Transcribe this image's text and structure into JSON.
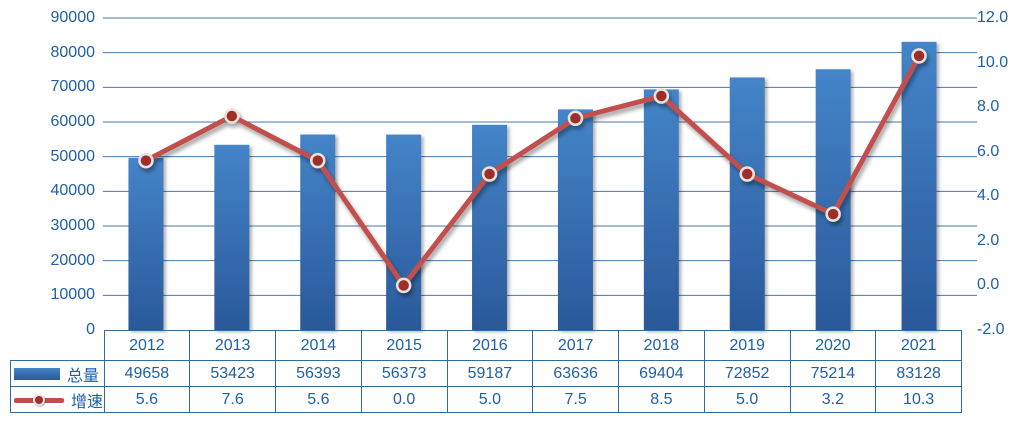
{
  "chart_data": {
    "type": "bar",
    "subtype": "combo-bar-line",
    "categories": [
      "2012",
      "2013",
      "2014",
      "2015",
      "2016",
      "2017",
      "2018",
      "2019",
      "2020",
      "2021"
    ],
    "series": [
      {
        "name": "总量",
        "type": "bar",
        "axis": "left",
        "values": [
          49658,
          53423,
          56393,
          56373,
          59187,
          63636,
          69404,
          72852,
          75214,
          83128
        ]
      },
      {
        "name": "增速",
        "type": "line",
        "axis": "right",
        "values": [
          5.6,
          7.6,
          5.6,
          0.0,
          5.0,
          7.5,
          8.5,
          5.0,
          3.2,
          10.3
        ]
      }
    ],
    "title": "",
    "xlabel": "",
    "ylabel_left": "",
    "ylabel_right": "",
    "left_axis": {
      "min": 0,
      "max": 90000,
      "step": 10000,
      "tick_labels": [
        "0",
        "10000",
        "20000",
        "30000",
        "40000",
        "50000",
        "60000",
        "70000",
        "80000",
        "90000"
      ]
    },
    "right_axis": {
      "min": -2,
      "max": 12,
      "step": 2,
      "tick_labels": [
        "-2.0",
        "0.0",
        "2.0",
        "4.0",
        "6.0",
        "8.0",
        "10.0",
        "12.0"
      ]
    },
    "grid": true,
    "legend_position": "data-table-left",
    "data_table_shown": true
  },
  "colors": {
    "bar_top": "#4484c8",
    "bar_bottom": "#29599a",
    "line": "#c0504d",
    "marker_fill": "#9e2f2b",
    "marker_ring": "#e8e2da",
    "gridline": "#4878b0",
    "axis_text": "#1e5fa8",
    "table_border": "#34699e",
    "table_text": "#1e5fa8"
  }
}
